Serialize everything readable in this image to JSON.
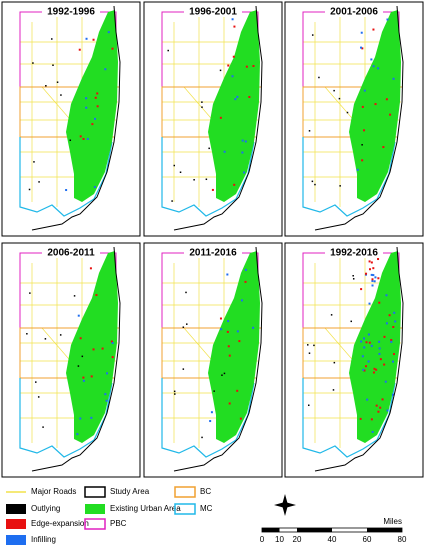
{
  "panels": [
    {
      "title": "1992-1996"
    },
    {
      "title": "1996-2001"
    },
    {
      "title": "2001-2006"
    },
    {
      "title": "2006-2011"
    },
    {
      "title": "2011-2016"
    },
    {
      "title": "1992-2016"
    }
  ],
  "legend": [
    {
      "label": "Major Roads"
    },
    {
      "label": "Outlying"
    },
    {
      "label": "Edge-expansion"
    },
    {
      "label": "Infilling"
    },
    {
      "label": "Study Area"
    },
    {
      "label": "Existing Urban Area"
    },
    {
      "label": "PBC"
    },
    {
      "label": "BC"
    },
    {
      "label": "MC"
    }
  ],
  "scale_bar": {
    "ticks": [
      0,
      10,
      20,
      40,
      60,
      80
    ],
    "unit": "Miles"
  }
}
